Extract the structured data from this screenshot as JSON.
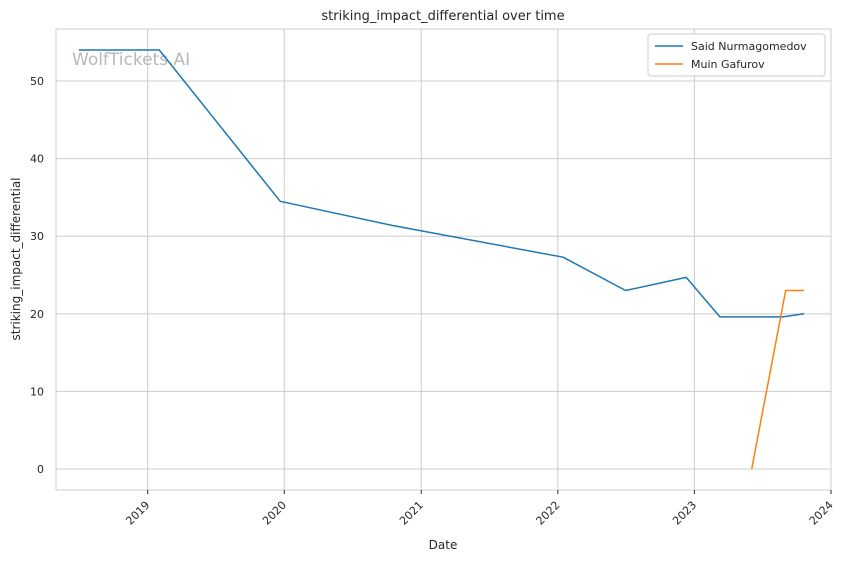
{
  "watermark": "WolfTickets.AI",
  "chart_data": {
    "type": "line",
    "title": "striking_impact_differential over time",
    "xlabel": "Date",
    "ylabel": "striking_impact_differential",
    "x_ticks": [
      "2019",
      "2020",
      "2021",
      "2022",
      "2023",
      "2024"
    ],
    "y_ticks": [
      0,
      10,
      20,
      30,
      40,
      50
    ],
    "xlim": [
      "2018-05-01",
      "2024-01-01"
    ],
    "ylim": [
      -2.7,
      56.7
    ],
    "grid": true,
    "legend_position": "top-right",
    "series": [
      {
        "name": "Said Nurmagomedov",
        "color": "#1f77b4",
        "points": [
          [
            "2018-07-01",
            54
          ],
          [
            "2019-02-01",
            54
          ],
          [
            "2019-12-21",
            34.5
          ],
          [
            "2020-10-15",
            31.4
          ],
          [
            "2022-01-15",
            27.3
          ],
          [
            "2022-07-01",
            23.0
          ],
          [
            "2022-12-10",
            24.7
          ],
          [
            "2023-03-10",
            19.6
          ],
          [
            "2023-08-25",
            19.6
          ],
          [
            "2023-10-21",
            20.0
          ]
        ]
      },
      {
        "name": "Muin Gafurov",
        "color": "#ff7f0e",
        "points": [
          [
            "2023-06-03",
            0
          ],
          [
            "2023-09-02",
            23.0
          ],
          [
            "2023-10-21",
            23.0
          ]
        ]
      }
    ]
  }
}
